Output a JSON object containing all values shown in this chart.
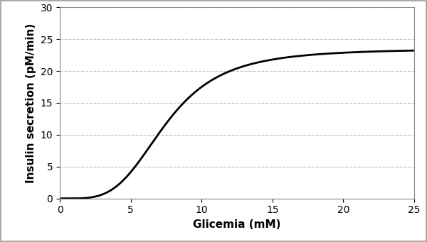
{
  "xlabel": "Glicemia (mM)",
  "ylabel": "Insulin secretion (pM/min)",
  "xlim": [
    0,
    25
  ],
  "ylim": [
    0,
    30
  ],
  "xticks": [
    0,
    5,
    10,
    15,
    20,
    25
  ],
  "yticks": [
    0,
    5,
    10,
    15,
    20,
    25,
    30
  ],
  "grid_color": "#c0c0c0",
  "line_color": "#000000",
  "line_width": 2.0,
  "background_color": "#ffffff",
  "fig_border_color": "#aaaaaa",
  "sigmoid_max": 23.5,
  "sigmoid_x0": 7.5,
  "sigmoid_n": 3.5,
  "basal_glucose": 0.5,
  "xlabel_fontsize": 11,
  "ylabel_fontsize": 11,
  "tick_fontsize": 10
}
